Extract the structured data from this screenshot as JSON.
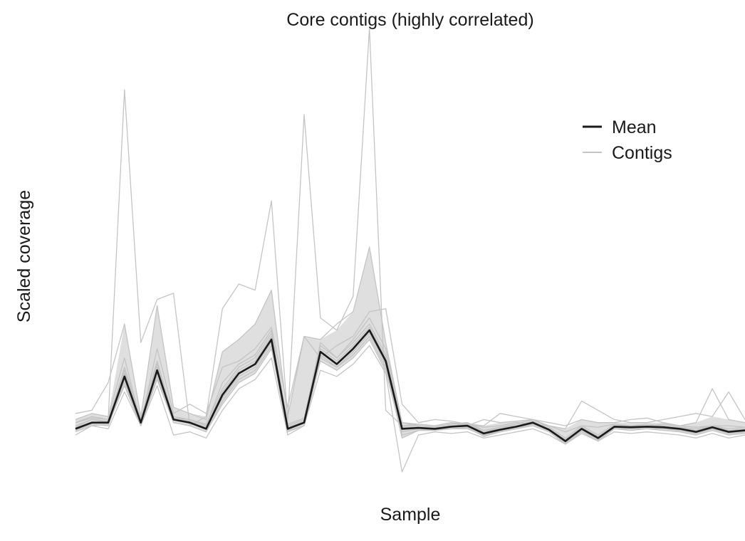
{
  "chart_data": {
    "type": "line",
    "title": "Core contigs (highly correlated)",
    "xlabel": "Sample",
    "ylabel": "Scaled coverage",
    "grid": false,
    "axes_visible": false,
    "legend": {
      "position": "top-right",
      "entries": [
        {
          "label": "Mean",
          "color": "#1a1a1a"
        },
        {
          "label": "Contigs",
          "color": "#c4c4c4"
        }
      ]
    },
    "n_samples": 42,
    "ylim": [
      -1.4,
      12.6
    ],
    "mean": [
      0.0,
      0.2,
      0.2,
      1.7,
      0.2,
      1.9,
      0.3,
      0.2,
      0.0,
      1.1,
      1.8,
      2.1,
      2.9,
      0.0,
      0.2,
      2.5,
      2.1,
      2.6,
      3.2,
      2.2,
      0.0,
      0.03,
      0.0,
      0.07,
      0.1,
      -0.15,
      -0.03,
      0.07,
      0.2,
      -0.03,
      -0.4,
      0.0,
      -0.3,
      0.07,
      0.05,
      0.07,
      0.05,
      0.0,
      -0.1,
      0.05,
      -0.1,
      -0.05
    ],
    "contig_series": [
      {
        "values": [
          0.2,
          0.4,
          0.3,
          11.0,
          2.8,
          4.2,
          4.4,
          0.1,
          0.4,
          3.9,
          4.7,
          4.5,
          7.4,
          0.3,
          10.2,
          3.6,
          3.2,
          4.3,
          13.0,
          0.6,
          0.1,
          0.15,
          0.1,
          0.2,
          0.15,
          0.05,
          0.1,
          0.2,
          0.15,
          0.1,
          -0.1,
          0.1,
          0.05,
          0.15,
          0.1,
          0.1,
          0.15,
          0.1,
          0.05,
          0.1,
          0.1,
          0.05
        ]
      },
      {
        "values": [
          0.5,
          0.6,
          1.5,
          3.4,
          0.4,
          4.0,
          0.7,
          0.5,
          0.3,
          2.5,
          2.9,
          3.4,
          4.5,
          0.4,
          3.0,
          2.9,
          3.4,
          3.8,
          5.9,
          2.8,
          0.2,
          0.15,
          0.1,
          0.2,
          0.1,
          0.3,
          0.2,
          0.25,
          0.3,
          0.2,
          0.1,
          0.3,
          0.2,
          0.2,
          0.3,
          0.35,
          0.2,
          0.1,
          0.2,
          1.3,
          0.3,
          0.2
        ]
      },
      {
        "values": [
          0.3,
          0.5,
          0.4,
          2.3,
          0.2,
          2.6,
          0.5,
          0.8,
          0.5,
          2.0,
          2.2,
          2.6,
          3.3,
          0.7,
          3.0,
          2.3,
          2.7,
          3.0,
          3.8,
          3.9,
          0.8,
          0.2,
          0.3,
          0.25,
          0.15,
          0.1,
          0.5,
          0.4,
          0.3,
          0.1,
          0.0,
          0.9,
          0.6,
          0.3,
          0.2,
          0.2,
          0.3,
          0.4,
          0.5,
          0.4,
          1.2,
          0.3
        ]
      },
      {
        "values": [
          -0.2,
          0.1,
          0.0,
          1.2,
          0.1,
          1.4,
          -0.2,
          -0.1,
          -0.3,
          0.6,
          1.3,
          1.6,
          2.3,
          -0.2,
          0.1,
          1.9,
          1.7,
          2.1,
          2.7,
          1.8,
          -1.4,
          -0.2,
          -0.1,
          -0.15,
          -0.1,
          -0.3,
          -0.2,
          -0.1,
          0.0,
          -0.2,
          -0.5,
          -0.15,
          -0.4,
          -0.1,
          -0.15,
          -0.1,
          -0.15,
          -0.2,
          -0.3,
          -0.15,
          -0.3,
          -0.2
        ]
      },
      {
        "values": [
          0.1,
          0.3,
          0.25,
          2.0,
          0.3,
          2.2,
          0.35,
          0.3,
          0.1,
          1.5,
          2.1,
          2.4,
          3.2,
          0.1,
          0.3,
          2.8,
          2.3,
          2.9,
          3.6,
          2.6,
          0.2,
          0.1,
          0.05,
          0.15,
          0.2,
          -0.05,
          0.05,
          0.15,
          0.3,
          0.05,
          -0.3,
          0.1,
          -0.2,
          0.15,
          0.1,
          0.15,
          0.1,
          0.05,
          0.0,
          0.1,
          0.0,
          0.05
        ]
      },
      {
        "values": [
          -0.1,
          0.1,
          0.15,
          1.4,
          0.1,
          1.6,
          0.2,
          0.1,
          -0.1,
          0.8,
          1.5,
          1.8,
          2.6,
          -0.1,
          0.1,
          2.2,
          1.9,
          2.3,
          2.9,
          1.9,
          -0.2,
          -0.05,
          -0.05,
          0.0,
          0.05,
          -0.25,
          -0.1,
          0.0,
          0.1,
          -0.1,
          -0.5,
          -0.1,
          -0.4,
          0.0,
          -0.05,
          0.0,
          -0.05,
          -0.1,
          -0.2,
          -0.05,
          -0.2,
          -0.15
        ]
      },
      {
        "values": [
          0.2,
          0.35,
          0.3,
          1.9,
          0.3,
          2.1,
          0.4,
          0.3,
          0.15,
          1.3,
          2.0,
          2.3,
          3.1,
          0.15,
          0.35,
          2.7,
          2.3,
          2.8,
          3.4,
          2.4,
          0.1,
          0.1,
          0.05,
          0.15,
          0.2,
          -0.1,
          0.05,
          0.1,
          0.25,
          0.0,
          -0.35,
          0.05,
          -0.25,
          0.1,
          0.1,
          0.1,
          0.1,
          0.05,
          -0.05,
          0.1,
          -0.05,
          0.0
        ]
      },
      {
        "values": [
          -0.05,
          0.15,
          0.1,
          1.5,
          0.15,
          1.7,
          0.2,
          0.1,
          -0.1,
          0.9,
          1.6,
          1.9,
          2.7,
          -0.05,
          0.1,
          2.3,
          2.0,
          2.4,
          3.0,
          2.0,
          -0.3,
          -0.05,
          -0.05,
          0.0,
          0.0,
          -0.2,
          -0.1,
          0.0,
          0.15,
          -0.05,
          -0.45,
          -0.05,
          -0.35,
          0.0,
          0.0,
          0.0,
          0.0,
          -0.05,
          -0.15,
          0.0,
          -0.15,
          -0.1
        ]
      },
      {
        "values": [
          0.05,
          0.3,
          0.2,
          1.8,
          0.2,
          2.0,
          0.35,
          0.25,
          0.05,
          1.2,
          1.9,
          2.2,
          3.0,
          0.05,
          0.25,
          2.6,
          2.2,
          2.7,
          3.3,
          2.3,
          0.05,
          0.05,
          0.0,
          0.1,
          0.15,
          -0.1,
          0.0,
          0.1,
          0.2,
          0.0,
          -0.35,
          0.05,
          -0.25,
          0.1,
          0.05,
          0.1,
          0.05,
          0.0,
          -0.05,
          0.1,
          -0.05,
          0.0
        ]
      },
      {
        "values": [
          0.0,
          0.2,
          0.2,
          1.6,
          0.2,
          1.8,
          0.3,
          0.2,
          0.0,
          1.0,
          1.7,
          2.0,
          2.8,
          0.0,
          0.2,
          2.4,
          2.0,
          2.5,
          3.1,
          2.1,
          -0.1,
          0.0,
          -0.05,
          0.05,
          0.1,
          -0.2,
          -0.05,
          0.05,
          0.15,
          -0.05,
          -0.45,
          -0.05,
          -0.35,
          0.05,
          0.0,
          0.05,
          0.0,
          -0.05,
          -0.15,
          0.0,
          -0.15,
          -0.1
        ]
      }
    ]
  }
}
